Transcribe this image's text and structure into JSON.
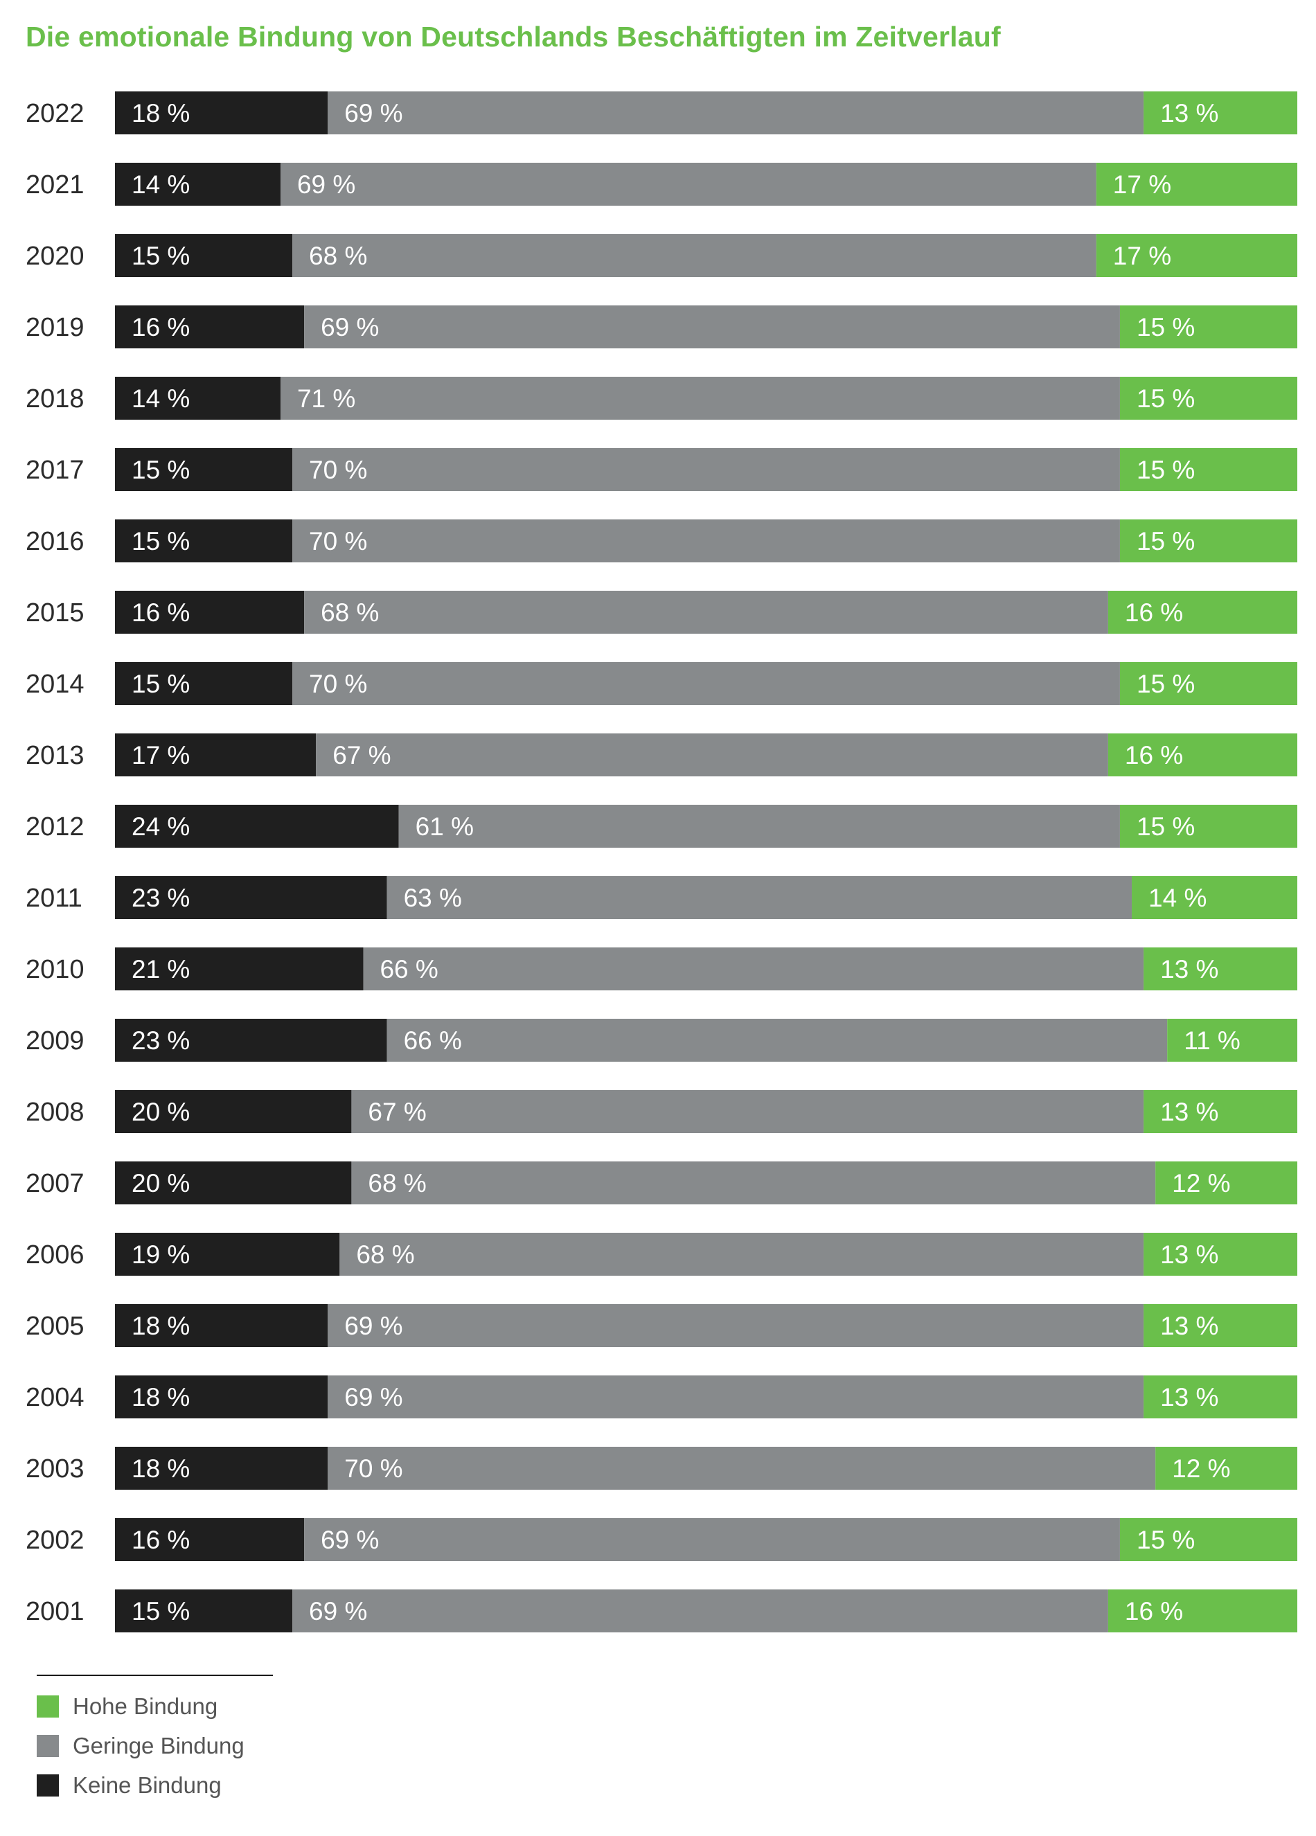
{
  "title": "Die emotionale Bindung von Deutschlands Beschäftigten im Zeitverlauf",
  "colors": {
    "keine": "#1f1f1f",
    "geringe": "#878a8c",
    "hohe": "#6abf4b",
    "title": "#6abf4b"
  },
  "legend": [
    {
      "label": "Hohe Bindung",
      "color": "#6abf4b"
    },
    {
      "label": "Geringe Bindung",
      "color": "#878a8c"
    },
    {
      "label": "Keine Bindung",
      "color": "#1f1f1f"
    }
  ],
  "chart_data": {
    "type": "bar",
    "orientation": "horizontal",
    "stacked": true,
    "categories": [
      "2022",
      "2021",
      "2020",
      "2019",
      "2018",
      "2017",
      "2016",
      "2015",
      "2014",
      "2013",
      "2012",
      "2011",
      "2010",
      "2009",
      "2008",
      "2007",
      "2006",
      "2005",
      "2004",
      "2003",
      "2002",
      "2001"
    ],
    "series": [
      {
        "name": "Keine Bindung",
        "color": "#1f1f1f",
        "values": [
          18,
          14,
          15,
          16,
          14,
          15,
          15,
          16,
          15,
          17,
          24,
          23,
          21,
          23,
          20,
          20,
          19,
          18,
          18,
          18,
          16,
          15
        ]
      },
      {
        "name": "Geringe Bindung",
        "color": "#878a8c",
        "values": [
          69,
          69,
          68,
          69,
          71,
          70,
          70,
          68,
          70,
          67,
          61,
          63,
          66,
          66,
          67,
          68,
          68,
          69,
          69,
          70,
          69,
          69
        ]
      },
      {
        "name": "Hohe Bindung",
        "color": "#6abf4b",
        "values": [
          13,
          17,
          17,
          15,
          15,
          15,
          15,
          16,
          15,
          16,
          15,
          14,
          13,
          11,
          13,
          12,
          13,
          13,
          13,
          12,
          15,
          16
        ]
      }
    ],
    "value_suffix": " %",
    "xlim": [
      0,
      100
    ],
    "legend_position": "bottom-left"
  }
}
